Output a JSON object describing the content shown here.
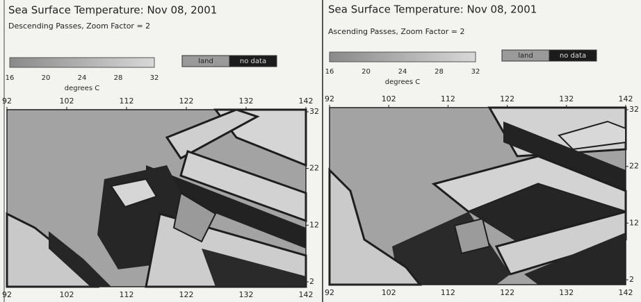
{
  "panels": [
    {
      "title": "Sea Surface Temperature:  Nov 08, 2001",
      "subtitle": "Descending Passes, Zoom Factor = 2",
      "colorbar": {
        "ticks": [
          16,
          20,
          24,
          28,
          32
        ],
        "label": "degrees C"
      },
      "legend": [
        "land",
        "no data"
      ],
      "x_ticks": [
        92,
        102,
        112,
        122,
        132,
        142
      ],
      "y_ticks": [
        32,
        22,
        12,
        2
      ]
    },
    {
      "title": "Sea Surface Temperature:  Nov 08, 2001",
      "subtitle": "Ascending Passes, Zoom Factor = 2",
      "colorbar": {
        "ticks": [
          16,
          20,
          24,
          28,
          32
        ],
        "label": "degrees C"
      },
      "legend": [
        "land",
        "no data"
      ],
      "x_ticks": [
        92,
        102,
        112,
        122,
        132,
        142
      ],
      "y_ticks": [
        32,
        22,
        12,
        2
      ]
    }
  ]
}
